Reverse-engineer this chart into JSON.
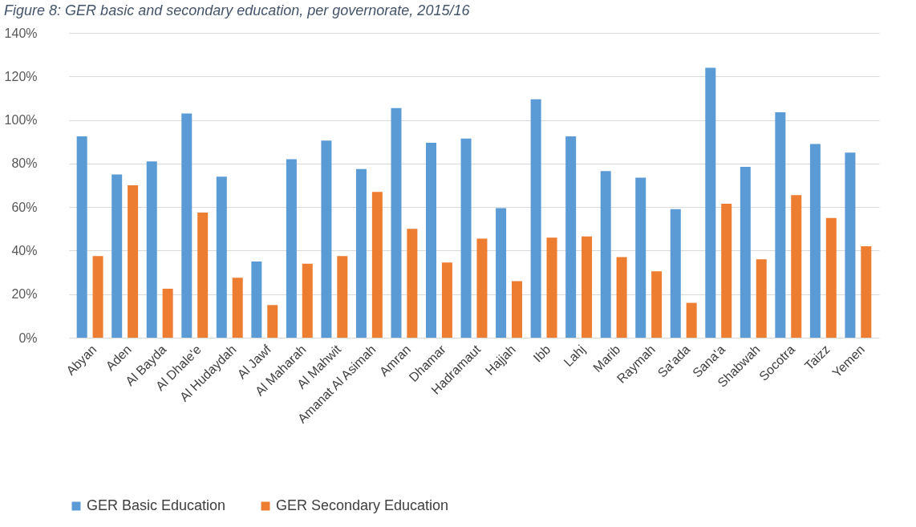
{
  "chart_data": {
    "type": "bar",
    "title": "Figure 8: GER basic and secondary education, per governorate, 2015/16",
    "categories": [
      "Abyan",
      "Aden",
      "Al Bayda",
      "Al Dhale'e",
      "Al Hudaydah",
      "Al Jawf",
      "Al Maharah",
      "Al Mahwit",
      "Amanat Al Asimah",
      "Amran",
      "Dhamar",
      "Hadramaut",
      "Hajjah",
      "Ibb",
      "Lahj",
      "Marib",
      "Raymah",
      "Sa'ada",
      "Sana'a",
      "Shabwah",
      "Socotra",
      "Taizz",
      "Yemen"
    ],
    "series": [
      {
        "name": "GER Basic Education",
        "color": "#5b9bd5",
        "values": [
          92.5,
          75,
          81,
          103,
          74,
          35,
          82,
          90.5,
          77.5,
          105.5,
          89.5,
          91.5,
          59.5,
          109.5,
          92.5,
          76.5,
          73.5,
          59,
          124,
          78.5,
          103.5,
          89,
          85
        ]
      },
      {
        "name": "GER Secondary Education",
        "color": "#ed7d31",
        "values": [
          37.5,
          70,
          22.5,
          57.5,
          27.5,
          15,
          34,
          37.5,
          67,
          50,
          34.5,
          45.5,
          26,
          46,
          46.5,
          37,
          30.5,
          16,
          61.5,
          36,
          65.5,
          55,
          42
        ]
      }
    ],
    "ylim": [
      0,
      140
    ],
    "yticks": [
      {
        "value": 0,
        "label": "0%"
      },
      {
        "value": 20,
        "label": "20%"
      },
      {
        "value": 40,
        "label": "40%"
      },
      {
        "value": 60,
        "label": "60%"
      },
      {
        "value": 80,
        "label": "80%"
      },
      {
        "value": 100,
        "label": "100%"
      },
      {
        "value": 120,
        "label": "120%"
      },
      {
        "value": 140,
        "label": "140%"
      }
    ],
    "grid": "y",
    "legend": "bottom"
  }
}
